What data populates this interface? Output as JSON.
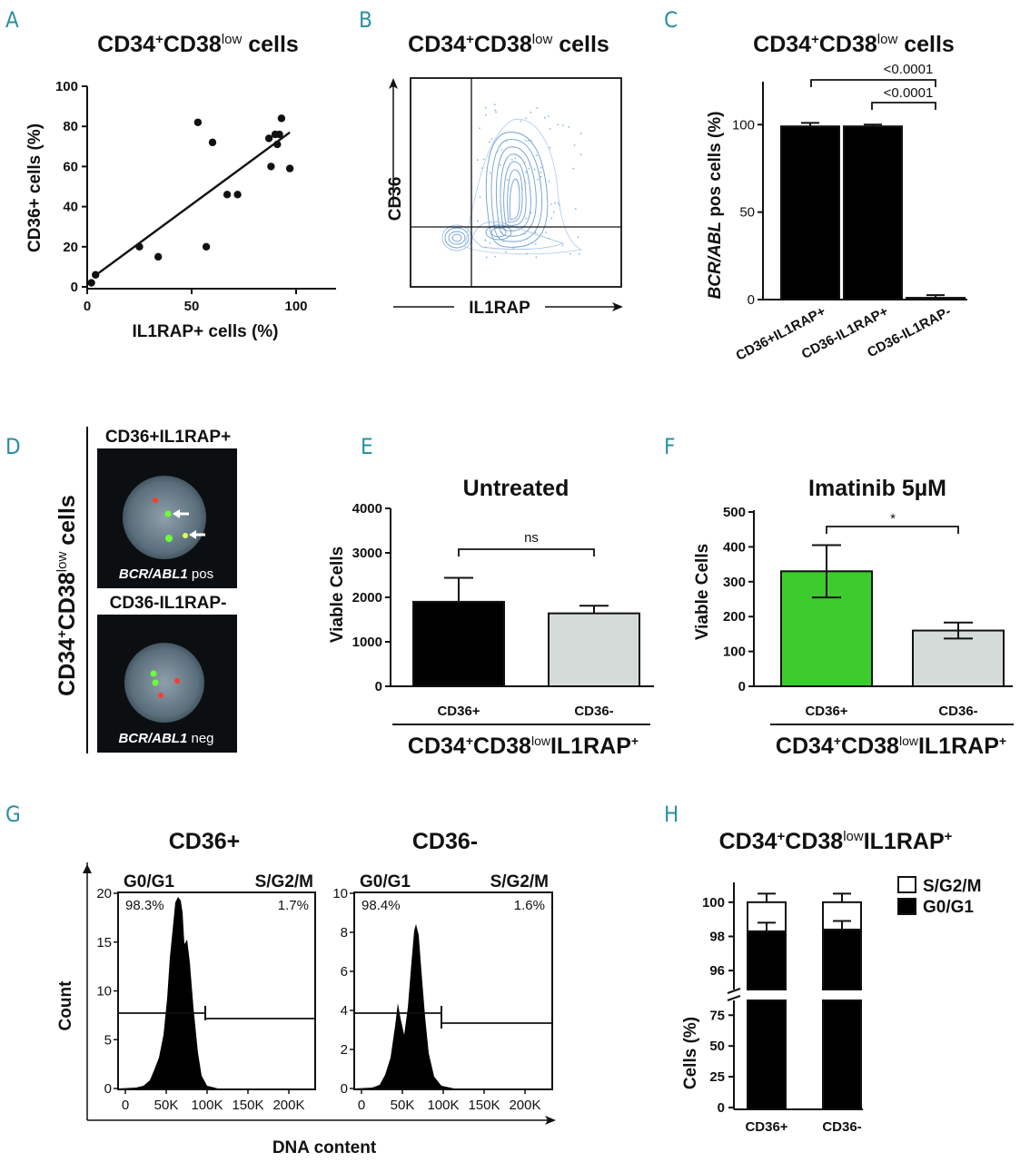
{
  "panel_labels": {
    "A": "A",
    "B": "B",
    "C": "C",
    "D": "D",
    "E": "E",
    "F": "F",
    "G": "G",
    "H": "H"
  },
  "common": {
    "cd34": "CD34",
    "plus": "+",
    "cd38": "CD38",
    "low": "low",
    "cells": " cells",
    "il1rap": "IL1RAP",
    "il1rap_sup": "+"
  },
  "panel_d": {
    "label_top": "CD36+IL1RAP+",
    "label_bottom": "CD36-IL1RAP-",
    "gene": "BCR/ABL1",
    "pos": " pos",
    "neg": " neg"
  },
  "panel_g": {
    "xlabel": "DNA content",
    "ylabel": "Count",
    "gate_left": "G0/G1",
    "gate_right": "S/G2/M"
  },
  "chart_data": [
    {
      "id": "A",
      "type": "scatter",
      "title": "CD34+CD38low cells",
      "xlabel": "IL1RAP+ cells (%)",
      "ylabel": "CD36+ cells (%)",
      "xlim": [
        0,
        100
      ],
      "ylim": [
        0,
        100
      ],
      "xticks": [
        "0",
        "50",
        "100"
      ],
      "yticks": [
        "0",
        "20",
        "40",
        "60",
        "80",
        "100"
      ],
      "points": [
        [
          2,
          2
        ],
        [
          4,
          6
        ],
        [
          25,
          20
        ],
        [
          34,
          15
        ],
        [
          53,
          82
        ],
        [
          57,
          20
        ],
        [
          60,
          72
        ],
        [
          67,
          46
        ],
        [
          72,
          46
        ],
        [
          87,
          74
        ],
        [
          88,
          60
        ],
        [
          90,
          76
        ],
        [
          92,
          76
        ],
        [
          91,
          71
        ],
        [
          93,
          84
        ],
        [
          97,
          59
        ]
      ],
      "fit_line": [
        [
          3,
          5
        ],
        [
          97,
          77
        ]
      ]
    },
    {
      "id": "B",
      "type": "contour",
      "title": "CD34+CD38low cells",
      "xlabel": "IL1RAP",
      "ylabel": "CD36"
    },
    {
      "id": "C",
      "type": "bar",
      "title": "CD34+CD38low cells",
      "ylabel_italic": "BCR/ABL",
      "ylabel_rest": " pos cells (%)",
      "categories": [
        "CD36+IL1RAP+",
        "CD36-IL1RAP+",
        "CD36-IL1RAP-"
      ],
      "values": [
        99,
        99,
        1
      ],
      "errors": [
        2,
        1,
        1.5
      ],
      "ylim": [
        0,
        110
      ],
      "yticks": [
        "0",
        "50",
        "100"
      ],
      "annotations": [
        "<0.0001",
        "<0.0001"
      ]
    },
    {
      "id": "E",
      "type": "bar",
      "title": "Untreated",
      "ylabel": "Viable Cells",
      "categories": [
        "CD36+",
        "CD36-"
      ],
      "values": [
        1900,
        1640
      ],
      "errors": [
        540,
        170
      ],
      "ylim": [
        0,
        4000
      ],
      "yticks": [
        "0",
        "1000",
        "2000",
        "3000",
        "4000"
      ],
      "significance": "ns",
      "colors": [
        "#000000",
        "#d5dbd9"
      ]
    },
    {
      "id": "F",
      "type": "bar",
      "title": "Imatinib 5µM",
      "ylabel": "Viable Cells",
      "categories": [
        "CD36+",
        "CD36-"
      ],
      "values": [
        330,
        160
      ],
      "errors": [
        75,
        23
      ],
      "ylim": [
        0,
        500
      ],
      "yticks": [
        "0",
        "100",
        "200",
        "300",
        "400",
        "500"
      ],
      "significance": "*",
      "colors": [
        "#3ccc2c",
        "#d5dbd9"
      ]
    },
    {
      "id": "G1",
      "type": "histogram",
      "title": "CD36+",
      "g0g1_pct": "98.3%",
      "sg2m_pct": "1.7%",
      "ylim": [
        0,
        20
      ],
      "yticks": [
        "0",
        "5",
        "10",
        "15",
        "20"
      ],
      "xticks": [
        "0",
        "50K",
        "100K",
        "150K",
        "200K"
      ]
    },
    {
      "id": "G2",
      "type": "histogram",
      "title": "CD36-",
      "g0g1_pct": "98.4%",
      "sg2m_pct": "1.6%",
      "ylim": [
        0,
        10
      ],
      "yticks": [
        "0",
        "2",
        "4",
        "6",
        "8",
        "10"
      ],
      "xticks": [
        "0",
        "50K",
        "100K",
        "150K",
        "200K"
      ]
    },
    {
      "id": "H",
      "type": "stacked_bar",
      "title": "CD34+CD38lowIL1RAP+",
      "ylabel": "Cells (%)",
      "categories": [
        "CD36+",
        "CD36-"
      ],
      "series": [
        {
          "name": "G0/G1",
          "values": [
            98.3,
            98.4
          ],
          "errors": [
            0.5,
            0.5
          ],
          "color": "#000000"
        },
        {
          "name": "S/G2/M",
          "values": [
            1.7,
            1.6
          ],
          "errors": [
            0.5,
            0.5
          ],
          "color": "#ffffff"
        }
      ],
      "yticks_upper": [
        "96",
        "98",
        "100"
      ],
      "yticks_lower": [
        "0",
        "25",
        "50",
        "75"
      ]
    }
  ]
}
